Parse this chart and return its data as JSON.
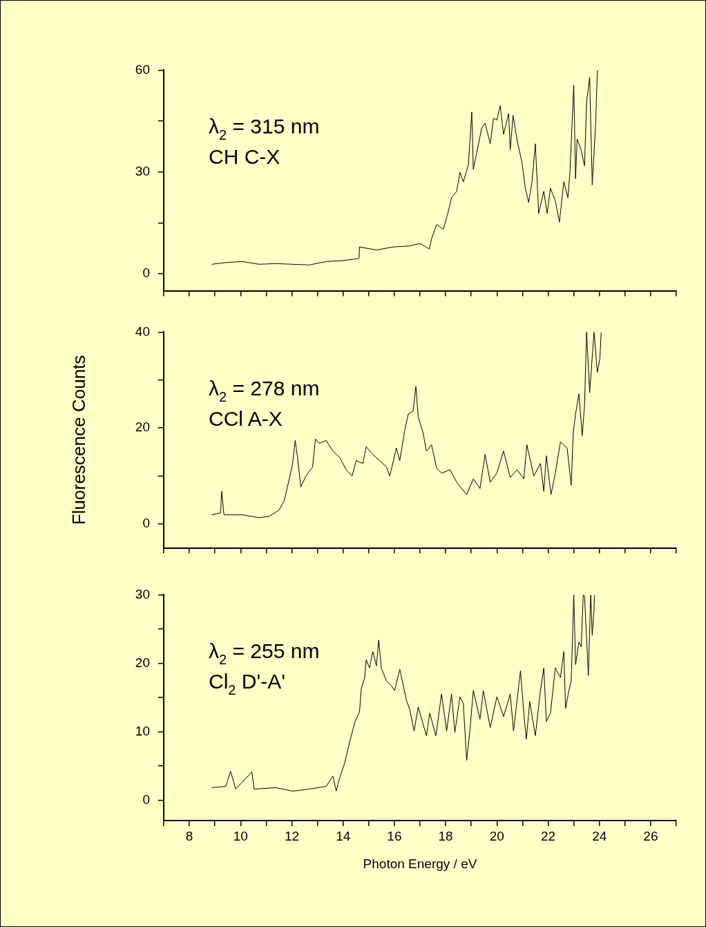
{
  "chart_data": [
    {
      "type": "line",
      "annotations": [
        "λ$_{2}$ = 315 nm",
        "CH C-X"
      ],
      "xlim": [
        7,
        27
      ],
      "ylim": [
        -5,
        60
      ],
      "xticks": [
        {
          "value": 7,
          "label": null
        },
        8,
        {
          "value": 9,
          "label": null
        },
        10,
        {
          "value": 11,
          "label": null
        },
        12,
        {
          "value": 13,
          "label": null
        },
        14,
        {
          "value": 15,
          "label": null
        },
        16,
        {
          "value": 17,
          "label": null
        },
        18,
        {
          "value": 19,
          "label": null
        },
        20,
        {
          "value": 21,
          "label": null
        },
        22,
        {
          "value": 23,
          "label": null
        },
        24,
        {
          "value": 25,
          "label": null
        },
        26,
        {
          "value": 27,
          "label": null
        }
      ],
      "yticks": [
        0,
        {
          "value": 15,
          "label": null
        },
        30,
        {
          "value": 45,
          "label": null
        },
        60
      ],
      "tick_labels": "y",
      "grid": false,
      "marker": "none",
      "line_style": "solid",
      "series": [
        {
          "color": "#000000",
          "x": [
            8.87,
            9.42,
            10.07,
            10.72,
            11.38,
            12.03,
            12.68,
            13.34,
            13.99,
            14.62,
            14.64,
            15.3,
            15.95,
            16.6,
            17.0,
            17.36,
            17.45,
            17.65,
            17.91,
            18.1,
            18.23,
            18.43,
            18.56,
            18.69,
            18.89,
            19.02,
            19.08,
            19.21,
            19.41,
            19.54,
            19.74,
            19.87,
            20.0,
            20.13,
            20.26,
            20.46,
            20.52,
            20.63,
            20.79,
            20.98,
            21.11,
            21.24,
            21.37,
            21.5,
            21.63,
            21.83,
            21.96,
            22.09,
            22.28,
            22.44,
            22.61,
            22.77,
            22.85,
            23.0,
            23.07,
            23.13,
            23.29,
            23.42,
            23.5,
            23.62,
            23.72,
            23.85,
            23.92,
            23.96
          ],
          "values": [
            2.8,
            3.3,
            3.6,
            2.8,
            3.0,
            2.8,
            2.6,
            3.6,
            3.9,
            4.5,
            7.9,
            7.0,
            7.9,
            8.2,
            8.9,
            7.3,
            10.3,
            14.5,
            13.1,
            18.2,
            22.4,
            24.3,
            29.9,
            27.1,
            32.2,
            47.7,
            30.8,
            35.5,
            43.0,
            44.4,
            38.3,
            45.8,
            45.3,
            49.5,
            41.1,
            47.2,
            36.4,
            46.7,
            39.3,
            32.7,
            25.2,
            21.0,
            27.1,
            38.3,
            17.8,
            24.3,
            17.8,
            25.2,
            21.5,
            15.2,
            27.1,
            22.4,
            29.9,
            55.6,
            28.0,
            39.7,
            36.4,
            31.8,
            50.5,
            57.9,
            26.2,
            43.5,
            59.8,
            60
          ]
        }
      ]
    },
    {
      "type": "line",
      "ylabel": "Fluorescence Counts",
      "annotations": [
        "λ$_{2}$ = 278 nm",
        "CCl A-X"
      ],
      "xlim": [
        7,
        27
      ],
      "ylim": [
        -5,
        40
      ],
      "xticks": [
        {
          "value": 7,
          "label": null
        },
        8,
        {
          "value": 9,
          "label": null
        },
        10,
        {
          "value": 11,
          "label": null
        },
        12,
        {
          "value": 13,
          "label": null
        },
        14,
        {
          "value": 15,
          "label": null
        },
        16,
        {
          "value": 17,
          "label": null
        },
        18,
        {
          "value": 19,
          "label": null
        },
        20,
        {
          "value": 21,
          "label": null
        },
        22,
        {
          "value": 23,
          "label": null
        },
        24,
        {
          "value": 25,
          "label": null
        },
        26,
        {
          "value": 27,
          "label": null
        }
      ],
      "yticks": [
        0,
        {
          "value": 10,
          "label": null
        },
        20,
        {
          "value": 30,
          "label": null
        },
        40
      ],
      "tick_labels": "y",
      "grid": false,
      "marker": "none",
      "line_style": "solid",
      "series": [
        {
          "color": "#000000",
          "x": [
            8.87,
            9.22,
            9.26,
            9.35,
            10.07,
            10.72,
            11.12,
            11.5,
            11.7,
            11.9,
            12.03,
            12.13,
            12.22,
            12.35,
            12.55,
            12.81,
            12.92,
            13.07,
            13.34,
            13.6,
            13.86,
            14.12,
            14.35,
            14.51,
            14.77,
            14.9,
            15.16,
            15.42,
            15.69,
            15.82,
            16.08,
            16.21,
            16.41,
            16.54,
            16.73,
            16.84,
            16.93,
            17.12,
            17.25,
            17.45,
            17.65,
            17.84,
            18.17,
            18.43,
            18.82,
            19.08,
            19.34,
            19.54,
            19.74,
            20.0,
            20.26,
            20.52,
            20.79,
            21.05,
            21.17,
            21.44,
            21.7,
            21.83,
            21.93,
            22.11,
            22.28,
            22.48,
            22.74,
            22.9,
            22.98,
            23.07,
            23.2,
            23.33,
            23.42,
            23.5,
            23.62,
            23.79,
            23.92,
            24.02,
            24.07
          ],
          "values": [
            1.9,
            2.3,
            6.8,
            1.9,
            1.9,
            1.3,
            1.6,
            2.9,
            4.8,
            9.4,
            12.6,
            17.4,
            13.9,
            7.7,
            10.0,
            11.9,
            17.7,
            16.8,
            17.4,
            15.2,
            13.9,
            11.3,
            10.0,
            13.2,
            12.6,
            16.1,
            14.5,
            13.2,
            11.9,
            10.0,
            15.8,
            13.2,
            19.7,
            22.9,
            23.5,
            28.7,
            22.3,
            19.0,
            15.2,
            16.5,
            11.6,
            10.6,
            11.3,
            8.7,
            6.1,
            9.4,
            7.4,
            14.5,
            8.7,
            10.6,
            15.2,
            9.7,
            11.3,
            9.4,
            16.5,
            10.0,
            12.6,
            6.8,
            14.2,
            6.1,
            10.6,
            17.1,
            15.8,
            8.1,
            19.0,
            22.9,
            27.1,
            18.4,
            24.8,
            40,
            27.4,
            40,
            31.6,
            34.5,
            40
          ]
        }
      ]
    },
    {
      "type": "line",
      "xlabel": "Photon Energy / eV",
      "annotations": [
        "λ$_{2}$ = 255 nm",
        "Cl$_{2}$ D'-A'"
      ],
      "xlim": [
        7,
        27
      ],
      "ylim": [
        -3,
        30
      ],
      "xticks": [
        {
          "value": 7,
          "label": null
        },
        8,
        {
          "value": 9,
          "label": null
        },
        10,
        {
          "value": 11,
          "label": null
        },
        12,
        {
          "value": 13,
          "label": null
        },
        14,
        {
          "value": 15,
          "label": null
        },
        16,
        {
          "value": 17,
          "label": null
        },
        18,
        {
          "value": 19,
          "label": null
        },
        20,
        {
          "value": 21,
          "label": null
        },
        22,
        {
          "value": 23,
          "label": null
        },
        24,
        {
          "value": 25,
          "label": null
        },
        26,
        {
          "value": 27,
          "label": null
        }
      ],
      "yticks": [
        0,
        {
          "value": 5,
          "label": null
        },
        10,
        {
          "value": 15,
          "label": null
        },
        20,
        {
          "value": 25,
          "label": null
        },
        30
      ],
      "grid": false,
      "marker": "none",
      "line_style": "solid",
      "series": [
        {
          "color": "#000000",
          "x": [
            8.87,
            9.42,
            9.61,
            9.81,
            10.44,
            10.53,
            11.38,
            12.03,
            12.68,
            13.34,
            13.6,
            13.73,
            13.86,
            14.06,
            14.25,
            14.45,
            14.64,
            14.71,
            14.84,
            14.9,
            15.03,
            15.16,
            15.3,
            15.39,
            15.49,
            15.69,
            15.88,
            16.01,
            16.21,
            16.47,
            16.6,
            16.77,
            16.93,
            17.25,
            17.38,
            17.62,
            17.84,
            18.04,
            18.23,
            18.36,
            18.56,
            18.69,
            18.82,
            18.95,
            19.08,
            19.34,
            19.47,
            19.74,
            20.0,
            20.26,
            20.52,
            20.65,
            20.92,
            21.05,
            21.15,
            21.28,
            21.5,
            21.7,
            21.83,
            21.93,
            22.09,
            22.28,
            22.48,
            22.61,
            22.68,
            22.81,
            22.9,
            23.0,
            23.07,
            23.2,
            23.29,
            23.37,
            23.42,
            23.57,
            23.66,
            23.72,
            23.79,
            23.81
          ],
          "values": [
            1.8,
            2.0,
            4.2,
            1.6,
            4.1,
            1.6,
            1.8,
            1.3,
            1.6,
            2.0,
            3.5,
            1.3,
            3.2,
            5.4,
            8.4,
            11.3,
            12.9,
            16.3,
            17.9,
            20.5,
            19.3,
            21.7,
            19.6,
            23.4,
            19.3,
            17.4,
            16.7,
            16.0,
            19.1,
            14.6,
            13.2,
            10.1,
            13.6,
            9.4,
            12.7,
            9.4,
            15.5,
            10.1,
            15.5,
            9.9,
            15.1,
            14.1,
            5.8,
            10.3,
            16.0,
            11.8,
            16.0,
            10.6,
            15.1,
            12.2,
            15.5,
            10.1,
            18.9,
            12.7,
            8.9,
            14.4,
            9.4,
            16.0,
            19.3,
            11.5,
            12.7,
            19.3,
            17.9,
            21.7,
            13.4,
            16.0,
            17.4,
            30,
            19.8,
            23.1,
            22.4,
            30,
            29.8,
            18.2,
            30,
            24.1,
            27.9,
            30
          ]
        }
      ]
    }
  ]
}
